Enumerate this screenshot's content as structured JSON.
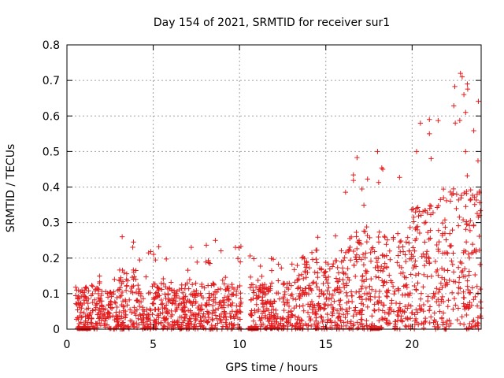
{
  "chart_data": {
    "type": "scatter",
    "title": "Day 154 of 2021, SRMTID for receiver sur1",
    "xlabel": "GPS time / hours",
    "ylabel": "SRMTID / TECUs",
    "xlim": [
      0,
      24
    ],
    "ylim": [
      0,
      0.8
    ],
    "xticks": [
      0,
      5,
      10,
      15,
      20
    ],
    "xtick_labels": [
      "0",
      "5",
      "10",
      "15",
      "20"
    ],
    "yticks": [
      0,
      0.1,
      0.2,
      0.3,
      0.4,
      0.5,
      0.6,
      0.7,
      0.8
    ],
    "ytick_labels": [
      "0",
      "0.1",
      "0.2",
      "0.3",
      "0.4",
      "0.5",
      "0.6",
      "0.7",
      "0.8"
    ],
    "grid": true,
    "marker": "+",
    "marker_color": "#e41a1c",
    "series": [
      {
        "name": "SRMTID",
        "approximate_density_profile": [
          {
            "from": 0.5,
            "to": 3.0,
            "typical_max": 0.12,
            "peak": 0.15
          },
          {
            "from": 3.0,
            "to": 4.0,
            "typical_max": 0.17,
            "peak": 0.26
          },
          {
            "from": 4.0,
            "to": 10.1,
            "typical_max": 0.13,
            "peak": 0.25
          },
          {
            "from": 10.6,
            "to": 13.0,
            "typical_max": 0.13,
            "peak": 0.21
          },
          {
            "from": 13.0,
            "to": 16.0,
            "typical_max": 0.2,
            "peak": 0.27
          },
          {
            "from": 16.0,
            "to": 18.5,
            "typical_max": 0.28,
            "peak": 0.5
          },
          {
            "from": 18.5,
            "to": 20.0,
            "typical_max": 0.27,
            "peak": 0.45
          },
          {
            "from": 20.0,
            "to": 22.0,
            "typical_max": 0.35,
            "peak": 0.59
          },
          {
            "from": 22.0,
            "to": 24.0,
            "typical_max": 0.4,
            "peak": 0.72
          }
        ],
        "notable_points": [
          {
            "x": 3.2,
            "y": 0.26
          },
          {
            "x": 8.6,
            "y": 0.25
          },
          {
            "x": 18.0,
            "y": 0.5
          },
          {
            "x": 18.3,
            "y": 0.45
          },
          {
            "x": 21.0,
            "y": 0.59
          },
          {
            "x": 21.0,
            "y": 0.55
          },
          {
            "x": 21.1,
            "y": 0.48
          },
          {
            "x": 22.5,
            "y": 0.58
          },
          {
            "x": 22.8,
            "y": 0.72
          },
          {
            "x": 22.9,
            "y": 0.71
          },
          {
            "x": 23.0,
            "y": 0.66
          },
          {
            "x": 23.1,
            "y": 0.61
          },
          {
            "x": 23.2,
            "y": 0.69
          },
          {
            "x": 23.1,
            "y": 0.5
          }
        ],
        "zero_value_ranges": [
          [
            0.6,
            1.4
          ],
          [
            10.5,
            11.1
          ],
          [
            11.8,
            11.9
          ],
          [
            14.4,
            14.5
          ],
          [
            17.6,
            18.1
          ]
        ]
      }
    ]
  }
}
